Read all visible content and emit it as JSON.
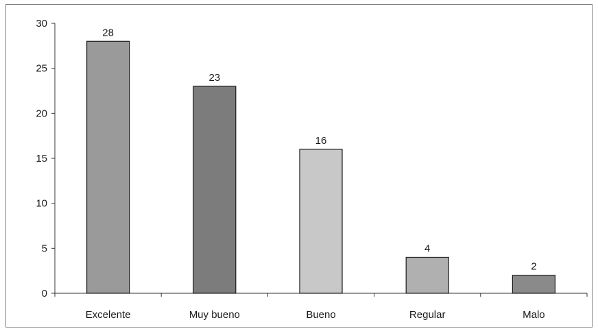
{
  "chart_data": {
    "type": "bar",
    "title": "",
    "xlabel": "",
    "ylabel": "",
    "categories": [
      "Excelente",
      "Muy bueno",
      "Bueno",
      "Regular",
      "Malo"
    ],
    "values": [
      28,
      23,
      16,
      4,
      2
    ],
    "data_labels": [
      "28",
      "23",
      "16",
      "4",
      "2"
    ],
    "ylim": [
      0,
      30
    ],
    "yticks": [
      0,
      5,
      10,
      15,
      20,
      25,
      30
    ],
    "grid": false,
    "legend": "none",
    "bar_colors": [
      "#9a9a9a",
      "#7c7c7c",
      "#c8c8c8",
      "#b0b0b0",
      "#8a8a8a"
    ],
    "bar_border_color": "#1a1a1a"
  }
}
